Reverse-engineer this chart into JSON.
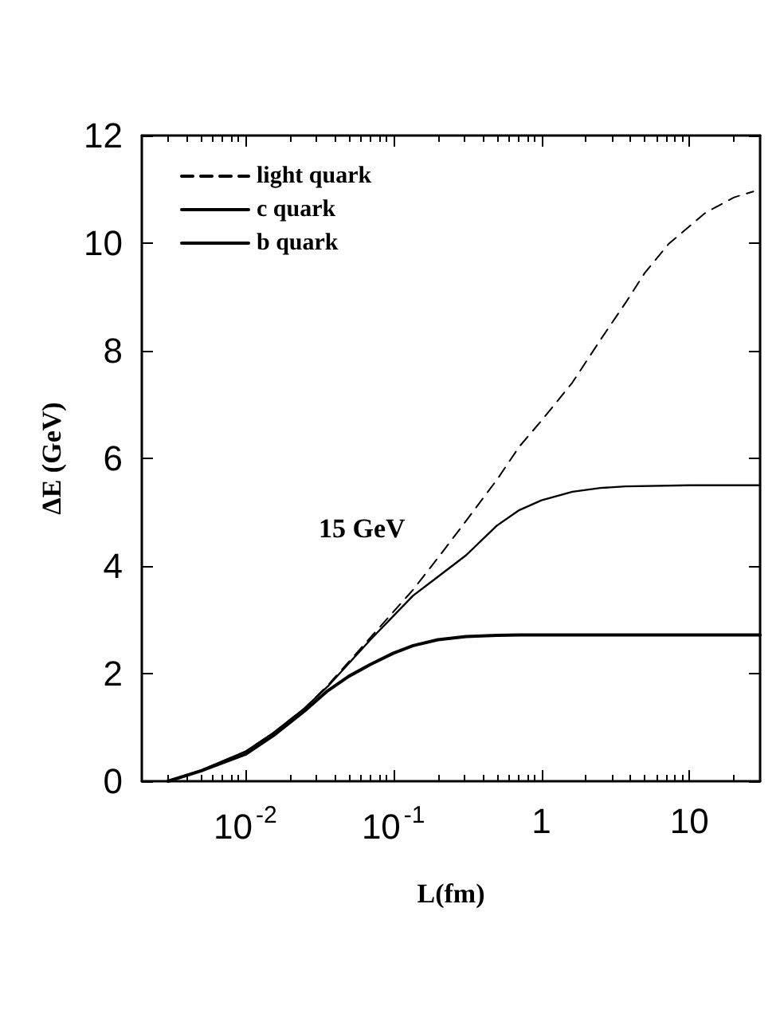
{
  "chart_data": {
    "type": "line",
    "xlabel": "L(fm)",
    "ylabel": "ΔE (GeV)",
    "annotations": [
      "15 GeV"
    ],
    "log": "x",
    "xlim": [
      0.002,
      30
    ],
    "xticks": [
      {
        "value": 0.01,
        "label": "10$^{-2}$"
      },
      {
        "value": 0.1,
        "label": "10$^{-1}$"
      },
      1,
      10
    ],
    "ylim": [
      0,
      12
    ],
    "yticks": [
      0,
      2,
      4,
      6,
      8,
      10,
      12
    ],
    "grid": false,
    "legend": "top left",
    "marker": "none",
    "series": [
      {
        "name": "light quark",
        "color": "#000000",
        "line_style": "dashed",
        "x": [
          0.003,
          0.005,
          0.01,
          0.0155,
          0.025,
          0.036,
          0.07,
          0.136,
          0.2,
          0.31,
          0.5,
          0.71,
          1.0,
          1.62,
          2.5,
          3.7,
          5,
          7.2,
          12.9,
          20,
          27
        ],
        "values": [
          0,
          0.2,
          0.55,
          0.9,
          1.35,
          1.78,
          2.67,
          3.56,
          4.15,
          4.84,
          5.6,
          6.22,
          6.7,
          7.41,
          8.2,
          8.89,
          9.45,
          9.98,
          10.57,
          10.85,
          10.96
        ]
      },
      {
        "name": "c quark",
        "color": "#000000",
        "line_style": "solid",
        "x": [
          0.003,
          0.005,
          0.01,
          0.0155,
          0.025,
          0.036,
          0.07,
          0.136,
          0.2,
          0.31,
          0.5,
          0.71,
          1.0,
          1.62,
          2.5,
          3.7,
          10,
          30
        ],
        "values": [
          0,
          0.2,
          0.55,
          0.9,
          1.35,
          1.76,
          2.63,
          3.45,
          3.8,
          4.2,
          4.75,
          5.04,
          5.22,
          5.38,
          5.45,
          5.48,
          5.5,
          5.5
        ]
      },
      {
        "name": "b quark",
        "color": "#000000",
        "line_style": "solid",
        "x": [
          0.003,
          0.005,
          0.01,
          0.0155,
          0.025,
          0.036,
          0.05,
          0.07,
          0.1,
          0.136,
          0.2,
          0.31,
          0.5,
          0.71,
          30
        ],
        "values": [
          0,
          0.19,
          0.5,
          0.85,
          1.3,
          1.68,
          1.95,
          2.17,
          2.38,
          2.52,
          2.63,
          2.69,
          2.71,
          2.72,
          2.72
        ]
      }
    ]
  }
}
